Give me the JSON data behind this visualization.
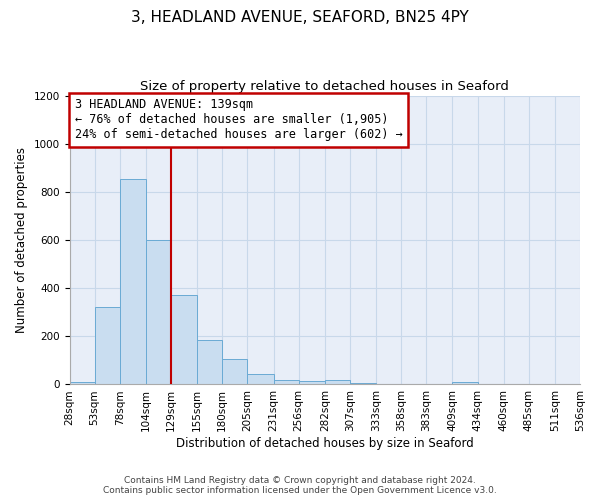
{
  "title": "3, HEADLAND AVENUE, SEAFORD, BN25 4PY",
  "subtitle": "Size of property relative to detached houses in Seaford",
  "xlabel": "Distribution of detached houses by size in Seaford",
  "ylabel": "Number of detached properties",
  "bin_edges": [
    28,
    53,
    78,
    104,
    129,
    155,
    180,
    205,
    231,
    256,
    282,
    307,
    333,
    358,
    383,
    409,
    434,
    460,
    485,
    511,
    536
  ],
  "bar_heights": [
    10,
    320,
    855,
    600,
    370,
    185,
    105,
    45,
    20,
    15,
    20,
    5,
    0,
    0,
    0,
    10,
    0,
    0,
    0,
    0
  ],
  "bar_color": "#c9ddf0",
  "bar_edge_color": "#6aaad4",
  "grid_color": "#c8d8ea",
  "background_color": "#e8eef8",
  "red_line_x": 129,
  "annotation_text_line1": "3 HEADLAND AVENUE: 139sqm",
  "annotation_text_line2": "← 76% of detached houses are smaller (1,905)",
  "annotation_text_line3": "24% of semi-detached houses are larger (602) →",
  "annotation_box_edge": "#c00000",
  "ylim": [
    0,
    1200
  ],
  "yticks": [
    0,
    200,
    400,
    600,
    800,
    1000,
    1200
  ],
  "footer_line1": "Contains HM Land Registry data © Crown copyright and database right 2024.",
  "footer_line2": "Contains public sector information licensed under the Open Government Licence v3.0.",
  "title_fontsize": 11,
  "subtitle_fontsize": 9.5,
  "axis_label_fontsize": 8.5,
  "tick_fontsize": 7.5,
  "annotation_fontsize": 8.5,
  "footer_fontsize": 6.5
}
